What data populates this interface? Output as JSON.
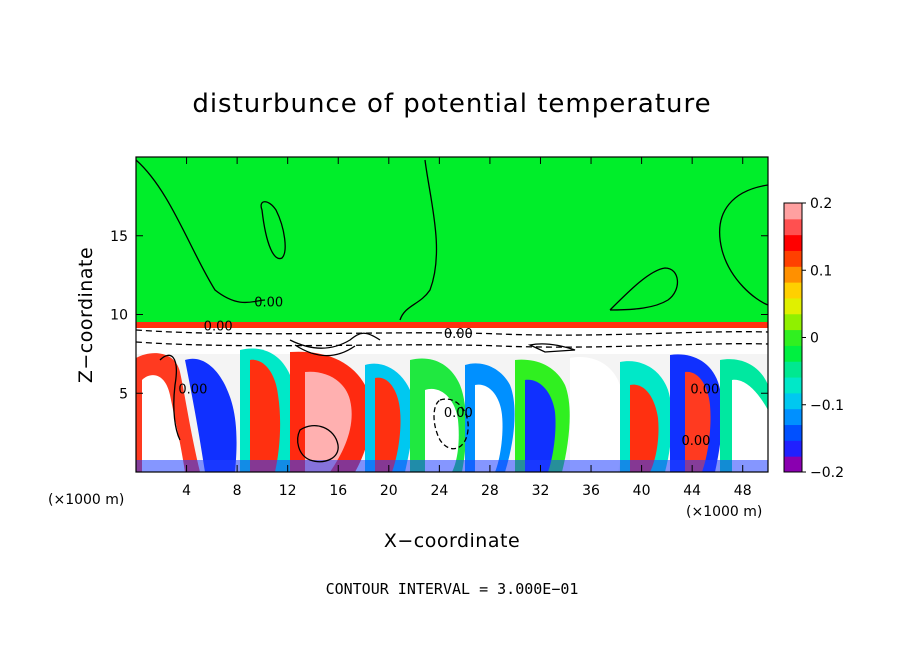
{
  "chart_data": {
    "type": "heatmap",
    "title": "disturbunce of potential temperature",
    "xlabel": "X−coordinate",
    "ylabel": "Z−coordinate",
    "x_unit_left": "(×1000 m)",
    "x_unit_right": "(×1000 m)",
    "xlim": [
      0,
      50
    ],
    "ylim": [
      0,
      20
    ],
    "x_ticks": [
      {
        "value": 4,
        "label": "4"
      },
      {
        "value": 8,
        "label": "8"
      },
      {
        "value": 12,
        "label": "12"
      },
      {
        "value": 16,
        "label": "16"
      },
      {
        "value": 20,
        "label": "20"
      },
      {
        "value": 24,
        "label": "24"
      },
      {
        "value": 28,
        "label": "28"
      },
      {
        "value": 32,
        "label": "32"
      },
      {
        "value": 36,
        "label": "36"
      },
      {
        "value": 40,
        "label": "40"
      },
      {
        "value": 44,
        "label": "44"
      },
      {
        "value": 48,
        "label": "48"
      }
    ],
    "y_ticks": [
      {
        "value": 5,
        "label": "5"
      },
      {
        "value": 10,
        "label": "10"
      },
      {
        "value": 15,
        "label": "15"
      }
    ],
    "colorbar": {
      "range": [
        -0.2,
        0.2
      ],
      "ticks": [
        {
          "value": 0.2,
          "label": "0.2"
        },
        {
          "value": 0.1,
          "label": "0.1"
        },
        {
          "value": 0,
          "label": "0"
        },
        {
          "value": -0.1,
          "label": "−0.1"
        },
        {
          "value": -0.2,
          "label": "−0.2"
        }
      ],
      "colors": [
        "#8a00b0",
        "#2020ff",
        "#0050ff",
        "#0090ff",
        "#00c8f0",
        "#00e8c8",
        "#00e890",
        "#00f040",
        "#30f020",
        "#90f000",
        "#e0f000",
        "#ffd000",
        "#ff9000",
        "#ff4000",
        "#ff0000",
        "#ff5050",
        "#ffa0a0"
      ]
    },
    "contour_labels": [
      {
        "x": 10.5,
        "y": 10.5,
        "text": "0.00"
      },
      {
        "x": 4.5,
        "y": 5.0,
        "text": "0.00"
      },
      {
        "x": 25.5,
        "y": 3.5,
        "text": "0.00"
      },
      {
        "x": 45.0,
        "y": 5.0,
        "text": "0.00"
      },
      {
        "x": 44.3,
        "y": 1.7,
        "text": "0.00"
      },
      {
        "x": 6.5,
        "y": 9.0,
        "text": "0.00"
      },
      {
        "x": 25.5,
        "y": 8.5,
        "text": "0.00"
      }
    ],
    "contour_interval_text": "CONTOUR INTERVAL = 3.000E−01"
  }
}
